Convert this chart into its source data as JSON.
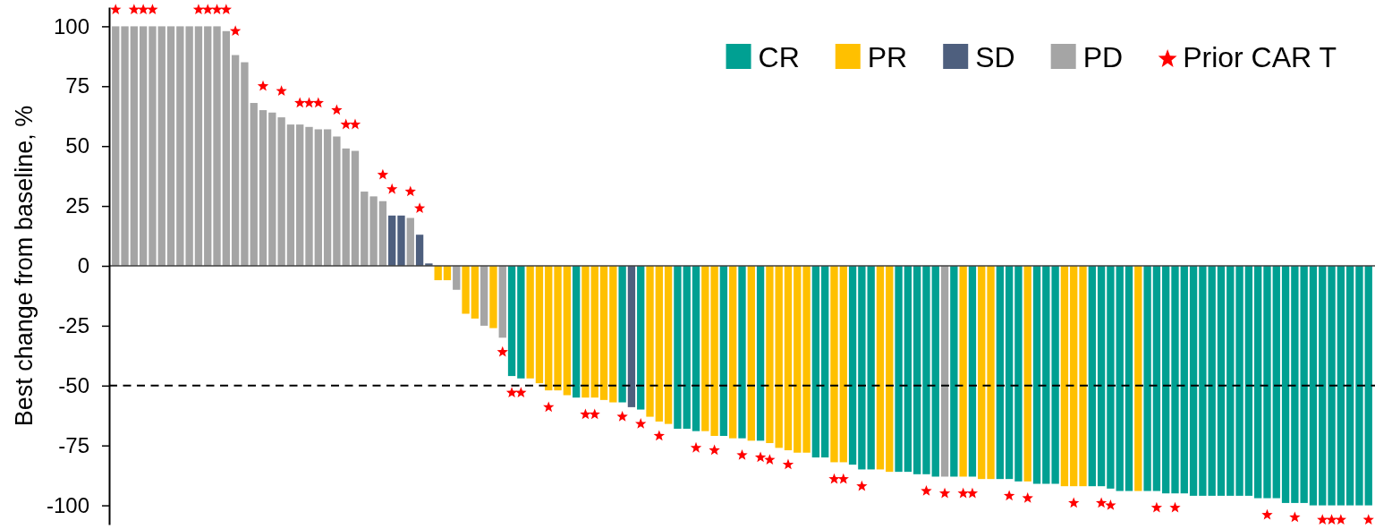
{
  "chart_data": {
    "type": "bar",
    "ylabel": "Best change from baseline, %",
    "categories": [
      null,
      null,
      null,
      null,
      null,
      null,
      null,
      null,
      null,
      null,
      null,
      null,
      null,
      null,
      null,
      null,
      null,
      null,
      null,
      null,
      null,
      null,
      null,
      null,
      null,
      null,
      null,
      null,
      null,
      null,
      null,
      null,
      null,
      null,
      null,
      null,
      null,
      null,
      null,
      null,
      null,
      null,
      null,
      null,
      null,
      null,
      null,
      null,
      null,
      null,
      null,
      null,
      null,
      null,
      null,
      null,
      null,
      null,
      null,
      null,
      null,
      null,
      null,
      null,
      null,
      null,
      null,
      null,
      null,
      null,
      null,
      null,
      null,
      null,
      null,
      null,
      null,
      null,
      null,
      null,
      null,
      null,
      null,
      null,
      null,
      null,
      null,
      null,
      null,
      null,
      null,
      null,
      null,
      null,
      null,
      null,
      null,
      null,
      null,
      null,
      null,
      null,
      null,
      null,
      null,
      null,
      null,
      null,
      null,
      null,
      null,
      null,
      null,
      null,
      null,
      null,
      null,
      null,
      null,
      null,
      null,
      null,
      null,
      null,
      null,
      null,
      null,
      null,
      null,
      null,
      null,
      null,
      null,
      null,
      null,
      null,
      null
    ],
    "series": [
      {
        "name": "CR",
        "color": "#00a092",
        "values": [
          null,
          null,
          null,
          null,
          null,
          null,
          null,
          null,
          null,
          null,
          null,
          null,
          null,
          null,
          null,
          null,
          null,
          null,
          null,
          null,
          null,
          null,
          null,
          null,
          null,
          null,
          null,
          null,
          null,
          null,
          null,
          null,
          null,
          null,
          null,
          null,
          null,
          null,
          null,
          null,
          null,
          null,
          null,
          -46,
          -47,
          null,
          null,
          null,
          null,
          null,
          -55,
          null,
          null,
          null,
          null,
          -57,
          null,
          -60,
          null,
          null,
          null,
          -68,
          -68,
          -69,
          null,
          null,
          -71,
          null,
          -72,
          null,
          -73,
          null,
          null,
          null,
          null,
          null,
          -80,
          -80,
          null,
          null,
          -83,
          -85,
          -85,
          null,
          null,
          -86,
          -86,
          -87,
          -87,
          -88,
          null,
          -88,
          null,
          -88,
          null,
          null,
          -89,
          -89,
          -90,
          null,
          -91,
          -91,
          -91,
          null,
          null,
          null,
          -92,
          -92,
          -93,
          -94,
          -94,
          null,
          -94,
          -94,
          -95,
          -95,
          -95,
          -96,
          -96,
          -96,
          -96,
          -96,
          -96,
          -96,
          -97,
          -97,
          -97,
          -99,
          -99,
          -99,
          -100,
          -100,
          -100,
          -100,
          -100,
          -100,
          -100
        ]
      },
      {
        "name": "PR",
        "color": "#ffc000",
        "values": [
          null,
          null,
          null,
          null,
          null,
          null,
          null,
          null,
          null,
          null,
          null,
          null,
          null,
          null,
          null,
          null,
          null,
          null,
          null,
          null,
          null,
          null,
          null,
          null,
          null,
          null,
          null,
          null,
          null,
          null,
          null,
          null,
          null,
          null,
          null,
          -6,
          -6,
          null,
          -20,
          -22,
          null,
          -26,
          null,
          null,
          null,
          -47,
          -49,
          -52,
          -52,
          -54,
          null,
          -55,
          -55,
          -56,
          -57,
          null,
          null,
          null,
          -63,
          -65,
          -66,
          null,
          null,
          null,
          -69,
          -71,
          null,
          -72,
          null,
          -73,
          null,
          -74,
          -76,
          -77,
          -78,
          -78,
          null,
          null,
          -82,
          -82,
          null,
          null,
          null,
          -85,
          -86,
          null,
          null,
          null,
          null,
          null,
          null,
          null,
          -88,
          null,
          -89,
          -89,
          null,
          null,
          null,
          -90,
          null,
          null,
          null,
          -92,
          -92,
          -92,
          null,
          null,
          null,
          null,
          null,
          -94,
          null,
          null,
          null,
          null,
          null,
          null,
          null,
          null,
          null,
          null,
          null,
          null,
          null,
          null,
          null,
          null,
          null,
          null,
          null,
          null,
          null,
          null,
          null,
          null,
          null
        ]
      },
      {
        "name": "SD",
        "color": "#4e5f7e",
        "values": [
          null,
          null,
          null,
          null,
          null,
          null,
          null,
          null,
          null,
          null,
          null,
          null,
          null,
          null,
          null,
          null,
          null,
          null,
          null,
          null,
          null,
          null,
          null,
          null,
          null,
          null,
          null,
          null,
          null,
          null,
          21,
          21,
          null,
          13,
          1,
          null,
          null,
          null,
          null,
          null,
          null,
          null,
          null,
          null,
          null,
          null,
          null,
          null,
          null,
          null,
          null,
          null,
          null,
          null,
          null,
          null,
          -59,
          null,
          null,
          null,
          null,
          null,
          null,
          null,
          null,
          null,
          null,
          null,
          null,
          null,
          null,
          null,
          null,
          null,
          null,
          null,
          null,
          null,
          null,
          null,
          null,
          null,
          null,
          null,
          null,
          null,
          null,
          null,
          null,
          null,
          null,
          null,
          null,
          null,
          null,
          null,
          null,
          null,
          null,
          null,
          null,
          null,
          null,
          null,
          null,
          null,
          null,
          null,
          null,
          null,
          null,
          null,
          null,
          null,
          null,
          null,
          null,
          null,
          null,
          null,
          null,
          null,
          null,
          null,
          null,
          null,
          null,
          null,
          null,
          null,
          null,
          null,
          null,
          null,
          null,
          null,
          null
        ]
      },
      {
        "name": "PD",
        "color": "#a5a5a5",
        "values": [
          100,
          100,
          100,
          100,
          100,
          100,
          100,
          100,
          100,
          100,
          100,
          100,
          98,
          88,
          85,
          68,
          65,
          64,
          62,
          59,
          59,
          58,
          57,
          57,
          54,
          49,
          48,
          31,
          29,
          27,
          null,
          null,
          20,
          null,
          null,
          null,
          null,
          -10,
          null,
          null,
          -25,
          null,
          -30,
          null,
          null,
          null,
          null,
          null,
          null,
          null,
          null,
          null,
          null,
          null,
          null,
          null,
          null,
          null,
          null,
          null,
          null,
          null,
          null,
          null,
          null,
          null,
          null,
          null,
          null,
          null,
          null,
          null,
          null,
          null,
          null,
          null,
          null,
          null,
          null,
          null,
          null,
          null,
          null,
          null,
          null,
          null,
          null,
          null,
          null,
          null,
          -88,
          null,
          null,
          null,
          null,
          null,
          null,
          null,
          null,
          null,
          null,
          null,
          null,
          null,
          null,
          null,
          null,
          null,
          null,
          null,
          null,
          null,
          null,
          null,
          null,
          null,
          null,
          null,
          null,
          null,
          null,
          null,
          null,
          null,
          null,
          null,
          null,
          null,
          null,
          null,
          null,
          null,
          null,
          null,
          null,
          null,
          null
        ]
      },
      {
        "name": "Prior CAR T",
        "type": "scatter",
        "marker": "star",
        "color": "#ff0000",
        "values": [
          107,
          null,
          107,
          107,
          107,
          null,
          null,
          null,
          null,
          107,
          107,
          107,
          107,
          98,
          null,
          null,
          75,
          null,
          73,
          null,
          68,
          68,
          68,
          null,
          65,
          59,
          59,
          null,
          null,
          38,
          32,
          null,
          31,
          24,
          null,
          null,
          null,
          null,
          null,
          null,
          null,
          null,
          -36,
          -53,
          -53,
          null,
          null,
          -59,
          null,
          null,
          null,
          -62,
          -62,
          null,
          null,
          -63,
          null,
          -66,
          null,
          -71,
          null,
          null,
          null,
          -76,
          null,
          -77,
          null,
          null,
          -79,
          null,
          -80,
          -81,
          null,
          -83,
          null,
          null,
          null,
          null,
          -89,
          -89,
          null,
          -92,
          null,
          null,
          null,
          null,
          null,
          null,
          -94,
          null,
          -95,
          null,
          -95,
          -95,
          null,
          null,
          null,
          -96,
          null,
          -97,
          null,
          null,
          null,
          null,
          -99,
          null,
          null,
          -99,
          -100,
          null,
          null,
          null,
          null,
          -101,
          null,
          -101,
          null,
          null,
          null,
          null,
          null,
          null,
          null,
          null,
          null,
          -104,
          null,
          null,
          -105,
          null,
          null,
          -106,
          -106,
          -106,
          null,
          null,
          -106
        ]
      }
    ],
    "stacked": true,
    "ylim": [
      -108,
      108
    ],
    "yticks": [
      -100,
      -75,
      -50,
      -25,
      0,
      25,
      50,
      75,
      100
    ],
    "ref_lines": [
      {
        "axis": "y",
        "value": -50,
        "color": "#000000",
        "line_style": "dashed"
      }
    ],
    "legend": "top right"
  }
}
